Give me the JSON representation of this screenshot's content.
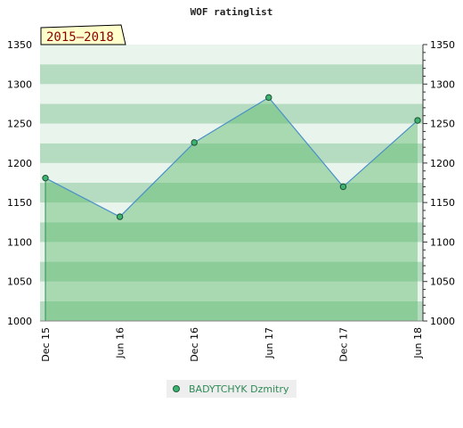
{
  "chart_data": {
    "type": "area",
    "title": "WOF ratinglist",
    "period_badge": "2015–2018",
    "categories": [
      "Dec 15",
      "Jun 16",
      "Dec 16",
      "Jun 17",
      "Dec 17",
      "Jun 18"
    ],
    "series": [
      {
        "name": "BADYTCHYK Dzmitry",
        "values": [
          1181,
          1132,
          1226,
          1283,
          1170,
          1254
        ]
      }
    ],
    "ylim": [
      1000,
      1350
    ],
    "yticks": [
      1000,
      1050,
      1100,
      1150,
      1200,
      1250,
      1300,
      1350
    ],
    "xlabel": "",
    "ylabel": "",
    "grid": true,
    "legend_position": "bottom",
    "colors": {
      "line": "#4a90c8",
      "marker": "#3cb371",
      "area": "#5cb86a",
      "band_light": "#e8f4ec",
      "band_dark": "#b5dcc0",
      "badge_bg": "#ffffcc",
      "badge_text": "#8b0000",
      "legend_text": "#2e8b57"
    }
  }
}
